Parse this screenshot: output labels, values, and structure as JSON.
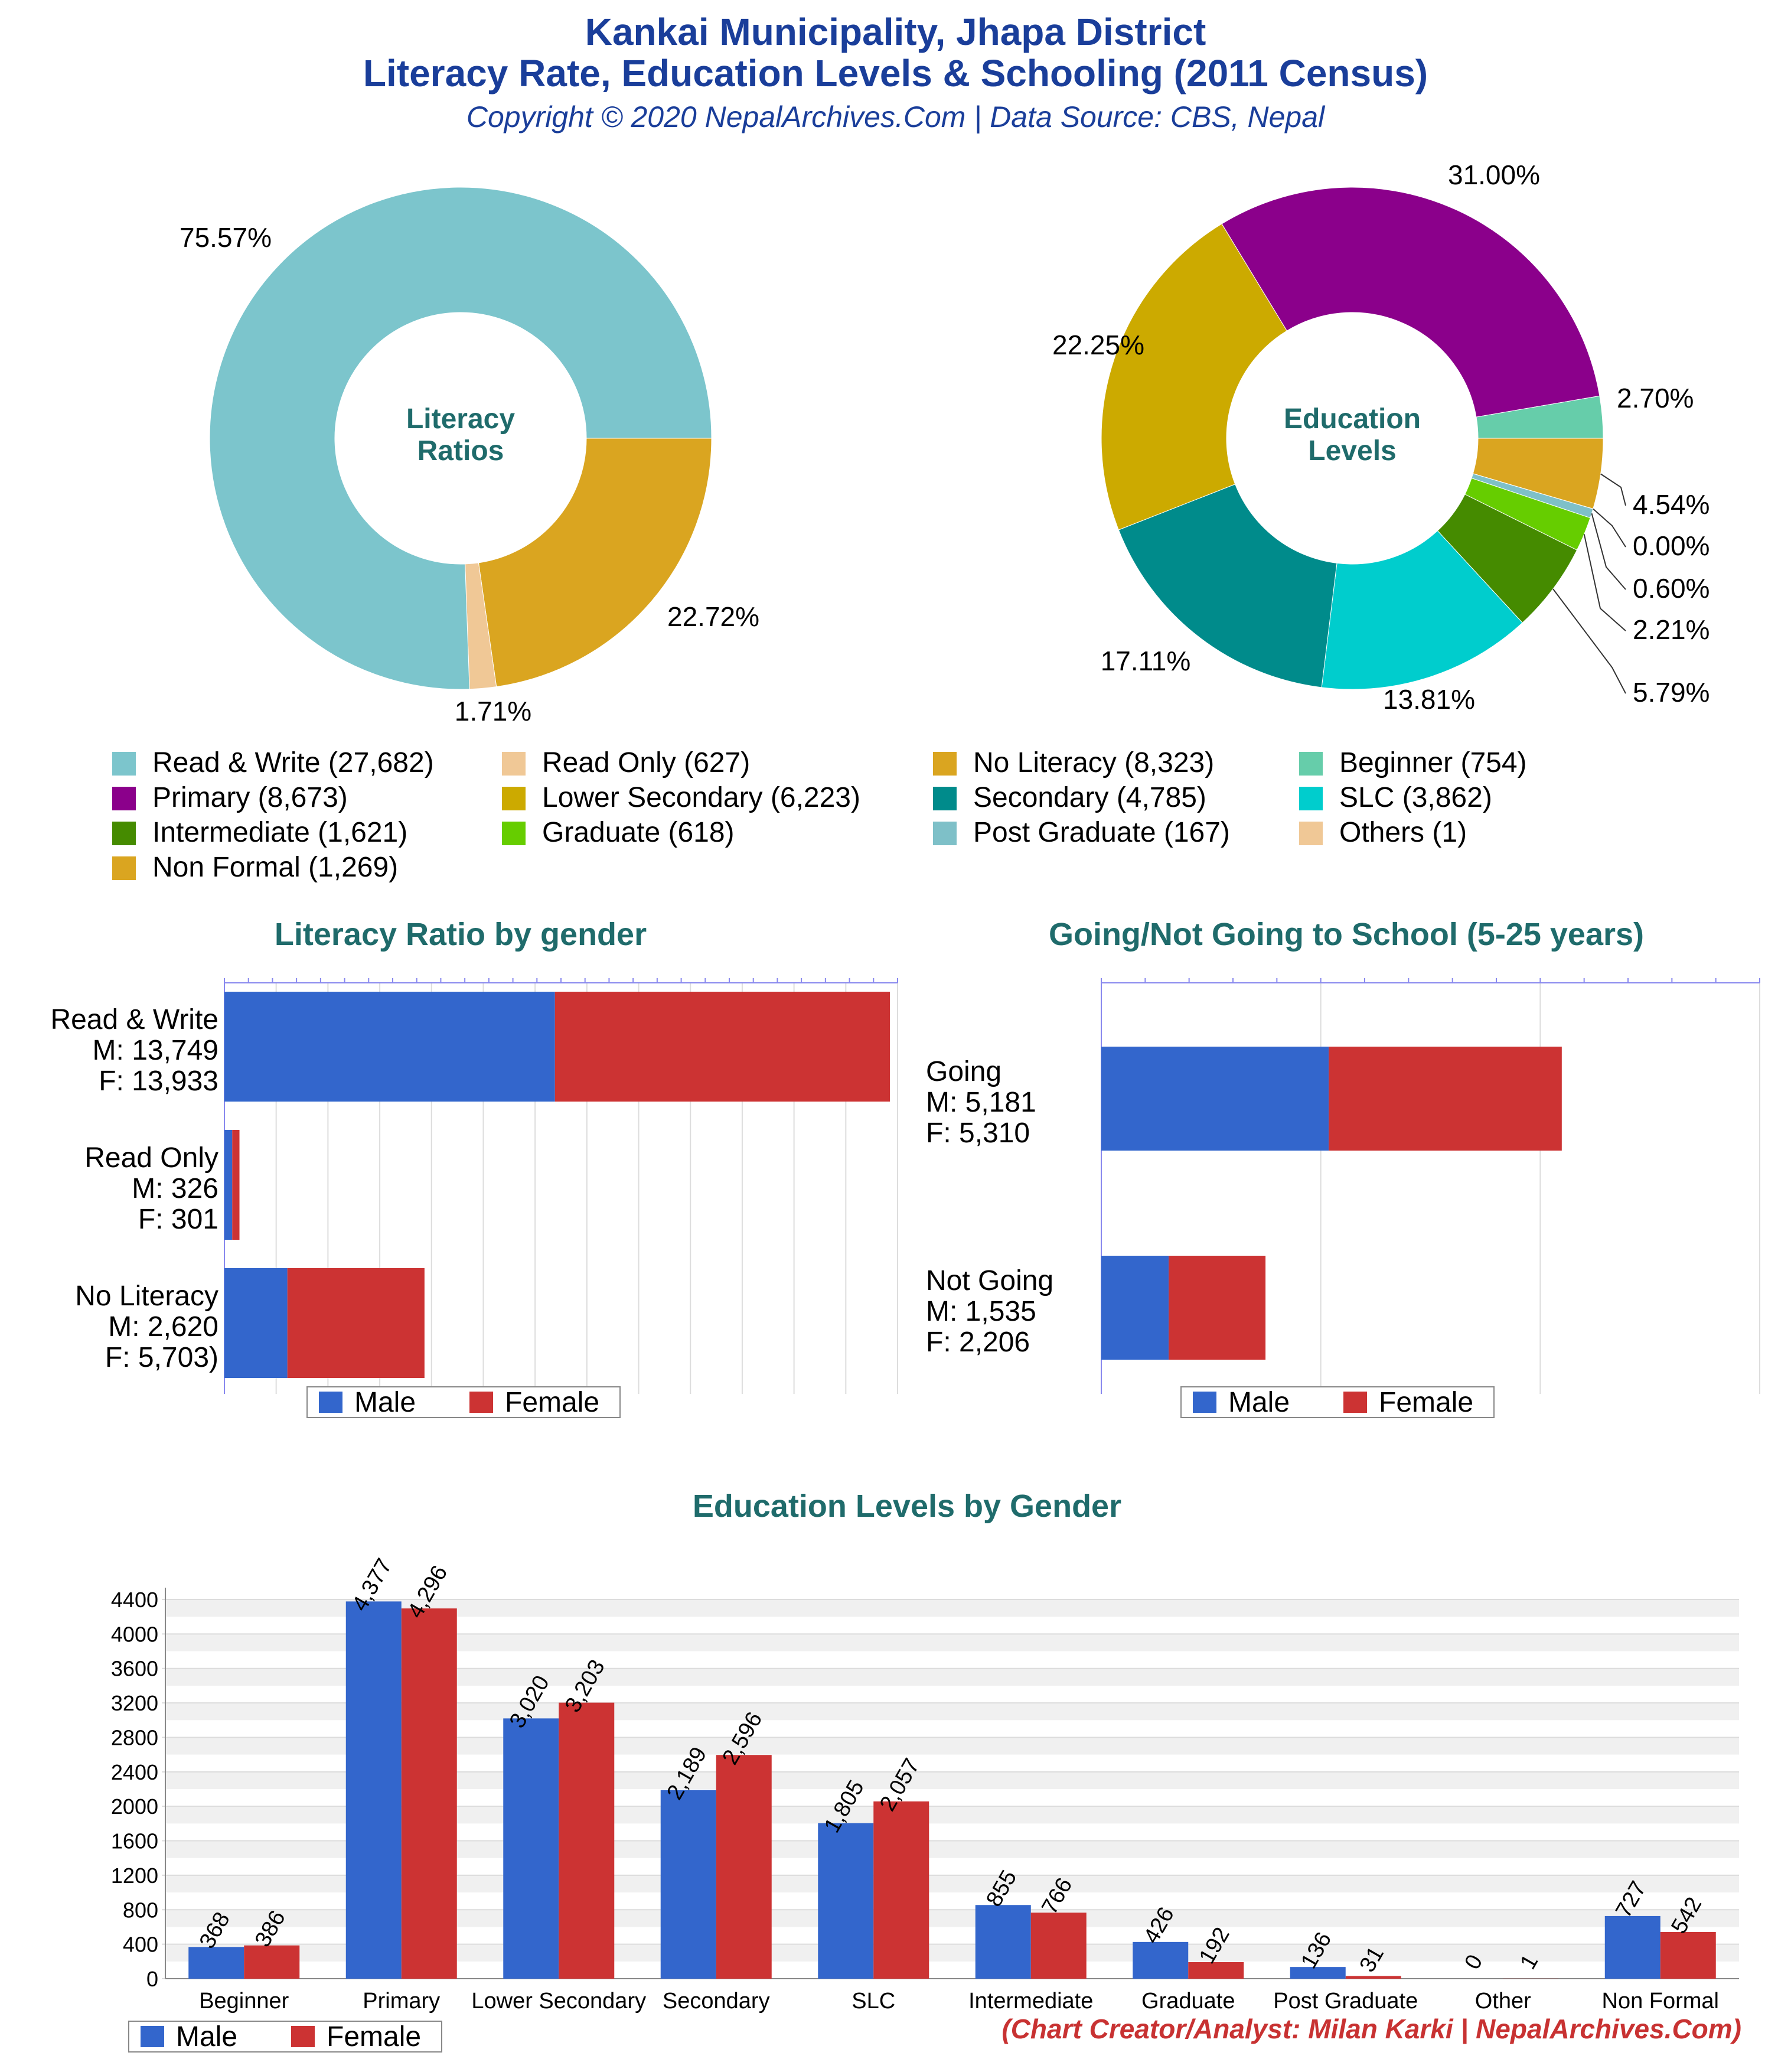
{
  "header": {
    "title_line1": "Kankai Municipality, Jhapa District",
    "title_line2": "Literacy Rate, Education Levels & Schooling (2011 Census)",
    "subtitle": "Copyright © 2020 NepalArchives.Com | Data Source: CBS, Nepal"
  },
  "credit": "(Chart Creator/Analyst: Milan Karki | NepalArchives.Com)",
  "colors": {
    "male": "#3366cc",
    "female": "#cc3333",
    "heading": "#1f6b6b",
    "title": "#1a3e9a"
  },
  "chart_data": [
    {
      "type": "pie",
      "title": "Literacy Ratios",
      "slices": [
        {
          "label": "Read & Write",
          "value": 27682,
          "percent": "75.57%",
          "color": "#7cc5cc"
        },
        {
          "label": "Read Only",
          "value": 627,
          "percent": "1.71%",
          "color": "#f0c896"
        },
        {
          "label": "No Literacy",
          "value": 8323,
          "percent": "22.72%",
          "color": "#daa520"
        }
      ]
    },
    {
      "type": "pie",
      "title": "Education Levels",
      "slices": [
        {
          "label": "Beginner",
          "value": 754,
          "percent": "2.70%",
          "color": "#66cdaa"
        },
        {
          "label": "Primary",
          "value": 8673,
          "percent": "31.00%",
          "color": "#8b008b"
        },
        {
          "label": "Lower Secondary",
          "value": 6223,
          "percent": "22.25%",
          "color": "#ccaa00"
        },
        {
          "label": "Secondary",
          "value": 4785,
          "percent": "17.11%",
          "color": "#008b8b"
        },
        {
          "label": "SLC",
          "value": 3862,
          "percent": "13.81%",
          "color": "#00cdcd"
        },
        {
          "label": "Intermediate",
          "value": 1621,
          "percent": "5.79%",
          "color": "#458b00"
        },
        {
          "label": "Graduate",
          "value": 618,
          "percent": "2.21%",
          "color": "#66cd00"
        },
        {
          "label": "Post Graduate",
          "value": 167,
          "percent": "0.60%",
          "color": "#7ec0c8"
        },
        {
          "label": "Others",
          "value": 1,
          "percent": "0.00%",
          "color": "#f0c896"
        },
        {
          "label": "Non Formal",
          "value": 1269,
          "percent": "4.54%",
          "color": "#daa520"
        }
      ]
    },
    {
      "type": "bar",
      "orientation": "horizontal",
      "stacked": true,
      "title": "Literacy Ratio by gender",
      "categories": [
        "Read & Write",
        "Read Only",
        "No Literacy"
      ],
      "category_labels": [
        [
          "Read & Write",
          "M: 13,749",
          "F: 13,933"
        ],
        [
          "Read Only",
          "M: 326",
          "F: 301"
        ],
        [
          "No Literacy",
          "M: 2,620",
          "F: 5,703)"
        ]
      ],
      "series": [
        {
          "name": "Male",
          "values": [
            13749,
            326,
            2620
          ]
        },
        {
          "name": "Female",
          "values": [
            13933,
            301,
            5703
          ]
        }
      ],
      "xlim": [
        0,
        28000
      ],
      "legend": "bottom"
    },
    {
      "type": "bar",
      "orientation": "horizontal",
      "stacked": true,
      "title": "Going/Not Going to School (5-25 years)",
      "categories": [
        "Going",
        "Not Going"
      ],
      "category_labels": [
        [
          "Going",
          "M: 5,181",
          "F: 5,310"
        ],
        [
          "Not Going",
          "M: 1,535",
          "F: 2,206"
        ]
      ],
      "series": [
        {
          "name": "Male",
          "values": [
            5181,
            1535
          ]
        },
        {
          "name": "Female",
          "values": [
            5310,
            2206
          ]
        }
      ],
      "xlim": [
        0,
        15000
      ],
      "legend": "bottom"
    },
    {
      "type": "bar",
      "title": "Education Levels by Gender",
      "categories": [
        "Beginner",
        "Primary",
        "Lower Secondary",
        "Secondary",
        "SLC",
        "Intermediate",
        "Graduate",
        "Post Graduate",
        "Other",
        "Non Formal"
      ],
      "series": [
        {
          "name": "Male",
          "values": [
            368,
            4377,
            3020,
            2189,
            1805,
            855,
            426,
            136,
            0,
            727
          ],
          "labels": [
            "368",
            "4,377",
            "3,020",
            "2,189",
            "1,805",
            "855",
            "426",
            "136",
            "0",
            "727"
          ]
        },
        {
          "name": "Female",
          "values": [
            386,
            4296,
            3203,
            2596,
            2057,
            766,
            192,
            31,
            1,
            542
          ],
          "labels": [
            "386",
            "4,296",
            "3,203",
            "2,596",
            "2,057",
            "766",
            "192",
            "31",
            "1",
            "542"
          ]
        }
      ],
      "yticks": [
        "0",
        "400",
        "800",
        "1200",
        "1600",
        "2000",
        "2400",
        "2800",
        "3200",
        "3600",
        "4000",
        "4400"
      ],
      "ylim": [
        0,
        4400
      ],
      "legend": "bottom-left"
    }
  ]
}
